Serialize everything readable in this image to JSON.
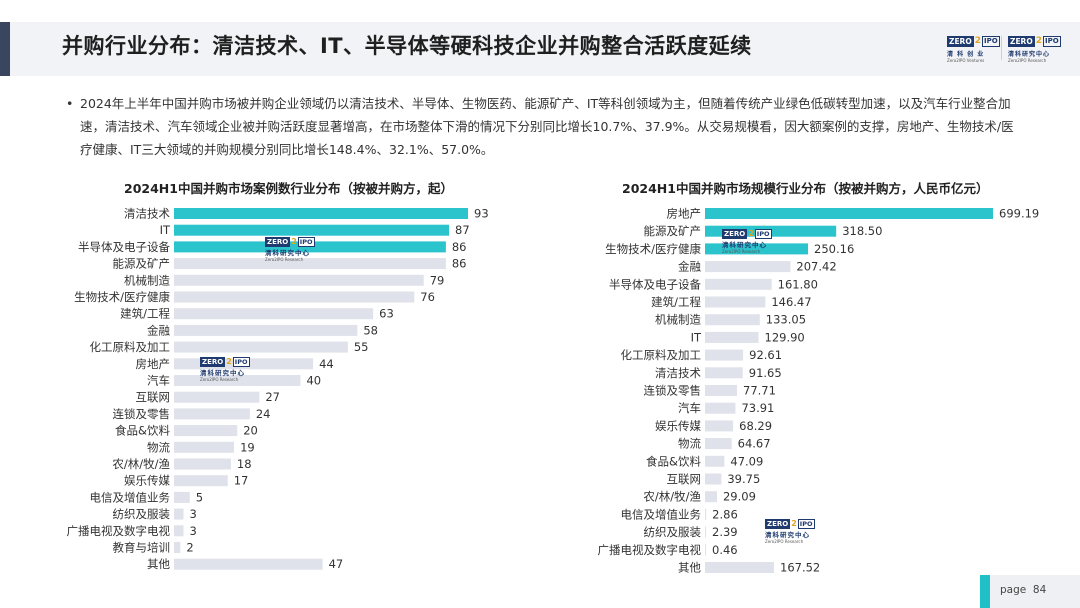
{
  "title": "并购行业分布：清洁技术、IT、半导体等硬科技企业并购整合活跃度延续",
  "bullet": "2024年上半年中国并购市场被并购企业领域仍以清洁技术、半导体、生物医药、能源矿产、IT等科创领域为主，但随着传统产业绿色低碳转型加速，以及汽车行业整合加速，清洁技术、汽车领域企业被并购活跃度显著增高，在市场整体下滑的情况下分别同比增长10.7%、37.9%。从交易规模看，因大额案例的支撑，房地产、生物技术/医疗健康、IT三大领域的并购规模分别同比增长148.4%、32.1%、57.0%。",
  "logo": {
    "zero": "ZERO",
    "two": "2",
    "ipo": "IPO",
    "left_cn": "清 科 创 业",
    "left_en": "Zero2IPO Ventures",
    "right_cn": "清科研究中心",
    "right_en": "Zero2IPO Research"
  },
  "colors": {
    "highlight": "#2bc3cc",
    "bar": "#dfe2ea",
    "header_dark": "#3a4660",
    "page_accent": "#1fc0c8"
  },
  "page": {
    "label": "page",
    "number": "84"
  },
  "chart_data": [
    {
      "type": "bar",
      "orientation": "horizontal",
      "title": "2024H1中国并购市场案例数行业分布（按被并购方，起）",
      "categories": [
        "清洁技术",
        "IT",
        "半导体及电子设备",
        "能源及矿产",
        "机械制造",
        "生物技术/医疗健康",
        "建筑/工程",
        "金融",
        "化工原料及加工",
        "房地产",
        "汽车",
        "互联网",
        "连锁及零售",
        "食品&饮料",
        "物流",
        "农/林/牧/渔",
        "娱乐传媒",
        "电信及增值业务",
        "纺织及服装",
        "广播电视及数字电视",
        "教育与培训",
        "其他"
      ],
      "values": [
        93,
        87,
        86,
        86,
        79,
        76,
        63,
        58,
        55,
        44,
        40,
        27,
        24,
        20,
        19,
        18,
        17,
        5,
        3,
        3,
        2,
        47
      ],
      "labels": [
        "93",
        "87",
        "86",
        "86",
        "79",
        "76",
        "63",
        "58",
        "55",
        "44",
        "40",
        "27",
        "24",
        "20",
        "19",
        "18",
        "17",
        "5",
        "3",
        "3",
        "2",
        "47"
      ],
      "highlighted": [
        "清洁技术",
        "IT",
        "半导体及电子设备"
      ],
      "xlim": [
        0,
        93
      ]
    },
    {
      "type": "bar",
      "orientation": "horizontal",
      "title": "2024H1中国并购市场规模行业分布（按被并购方，人民币亿元）",
      "categories": [
        "房地产",
        "能源及矿产",
        "生物技术/医疗健康",
        "金融",
        "半导体及电子设备",
        "建筑/工程",
        "机械制造",
        "IT",
        "化工原料及加工",
        "清洁技术",
        "连锁及零售",
        "汽车",
        "娱乐传媒",
        "物流",
        "食品&饮料",
        "互联网",
        "农/林/牧/渔",
        "电信及增值业务",
        "纺织及服装",
        "广播电视及数字电视",
        "其他"
      ],
      "values": [
        699.19,
        318.5,
        250.16,
        207.42,
        161.8,
        146.47,
        133.05,
        129.9,
        92.61,
        91.65,
        77.71,
        73.91,
        68.29,
        64.67,
        47.09,
        39.75,
        29.09,
        2.86,
        2.39,
        0.46,
        167.52
      ],
      "labels": [
        "699.19",
        "318.50",
        "250.16",
        "207.42",
        "161.80",
        "146.47",
        "133.05",
        "129.90",
        "92.61",
        "91.65",
        "77.71",
        "73.91",
        "68.29",
        "64.67",
        "47.09",
        "39.75",
        "29.09",
        "2.86",
        "2.39",
        "0.46",
        "167.52"
      ],
      "highlighted": [
        "房地产",
        "能源及矿产",
        "生物技术/医疗健康"
      ],
      "xlim": [
        0,
        699.19
      ]
    }
  ]
}
